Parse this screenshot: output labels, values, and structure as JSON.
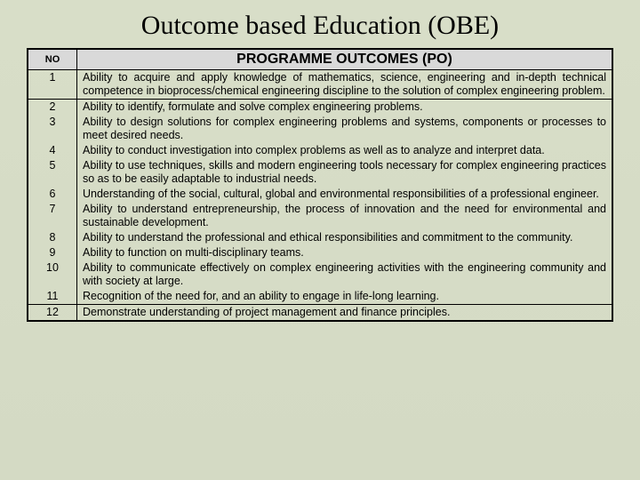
{
  "title": "Outcome based Education (OBE)",
  "table": {
    "columns": {
      "no": "NO",
      "po": "PROGRAMME OUTCOMES (PO)"
    },
    "groups": [
      {
        "rows": [
          {
            "no": "1",
            "desc": "Ability to acquire and apply knowledge of mathematics, science, engineering and in-depth technical competence in bioprocess/chemical engineering discipline to the solution of complex engineering problem."
          }
        ]
      },
      {
        "rows": [
          {
            "no": "2",
            "desc": "Ability to identify, formulate and solve complex engineering problems."
          },
          {
            "no": "3",
            "desc": "Ability to design solutions for complex engineering problems and systems, components or processes to meet desired needs."
          },
          {
            "no": "4",
            "desc": "Ability to conduct investigation into complex problems as well as to analyze and interpret data."
          },
          {
            "no": "5",
            "desc": "Ability to use techniques, skills and modern engineering tools necessary for complex engineering practices so as to be easily adaptable to industrial needs."
          },
          {
            "no": "6",
            "desc": "Understanding of the social, cultural, global and environmental responsibilities of a professional engineer."
          },
          {
            "no": "7",
            "desc": "Ability to understand entrepreneurship, the process of innovation and the need for environmental and sustainable development."
          },
          {
            "no": "8",
            "desc": "Ability to understand the professional and ethical responsibilities and commitment to the community."
          },
          {
            "no": "9",
            "desc": "Ability to function on multi-disciplinary teams."
          },
          {
            "no": "10",
            "desc": "Ability to communicate effectively on complex engineering activities with the engineering community and with society at large."
          },
          {
            "no": "11",
            "desc": "Recognition of the need for, and an ability to engage in life-long learning."
          }
        ]
      },
      {
        "rows": [
          {
            "no": "12",
            "desc": "Demonstrate understanding of project management and finance principles."
          }
        ]
      }
    ],
    "styling": {
      "header_bg": "#d9d9d9",
      "border_color": "#000000",
      "body_bg_gradient": [
        "#d8dec8",
        "#d4dac4"
      ],
      "title_font": "Times New Roman",
      "title_fontsize": 30,
      "cell_fontsize": 12.5,
      "no_col_width": 55
    }
  }
}
